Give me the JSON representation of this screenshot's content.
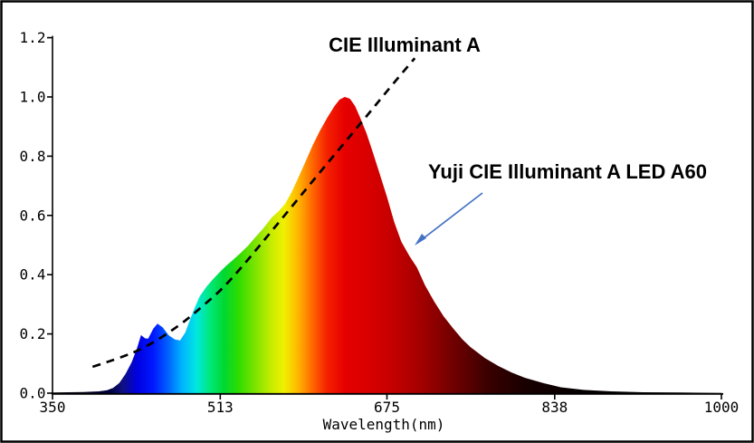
{
  "annotations": {
    "cie_label": "CIE Illuminant A",
    "led_label": "Yuji CIE Illuminant A LED A60",
    "arrow_color": "#4472c4",
    "text_color": "#000000"
  },
  "axes": {
    "x": {
      "title": "Wavelength(nm)",
      "min": 350,
      "max": 1000,
      "tick_labels": [
        "350",
        "513",
        "675",
        "838",
        "1000"
      ],
      "tick_values": [
        350,
        513,
        675,
        838,
        1000
      ]
    },
    "y": {
      "min": 0.0,
      "max": 1.2,
      "tick_labels": [
        "0.0",
        "0.2",
        "0.4",
        "0.6",
        "0.8",
        "1.0",
        "1.2"
      ],
      "tick_values": [
        0.0,
        0.2,
        0.4,
        0.6,
        0.8,
        1.0,
        1.2
      ]
    }
  },
  "chart_data": {
    "type": "area",
    "title": "",
    "xlabel": "Wavelength(nm)",
    "ylabel": "",
    "xlim": [
      350,
      1000
    ],
    "ylim": [
      0,
      1.2
    ],
    "grid": false,
    "legend": "inline-annotations",
    "series": [
      {
        "name": "CIE Illuminant A",
        "style": "dashed-line",
        "color": "#000000",
        "points": [
          [
            389,
            0.089
          ],
          [
            413,
            0.116
          ],
          [
            440,
            0.153
          ],
          [
            475,
            0.232
          ],
          [
            497,
            0.297
          ],
          [
            519,
            0.364
          ],
          [
            563,
            0.547
          ],
          [
            607,
            0.734
          ],
          [
            651,
            0.917
          ],
          [
            677,
            1.028
          ],
          [
            702,
            1.131
          ]
        ]
      },
      {
        "name": "Yuji CIE Illuminant A LED A60",
        "style": "filled-area-spectrum",
        "points": [
          [
            350,
            0.002
          ],
          [
            380,
            0.004
          ],
          [
            395,
            0.006
          ],
          [
            403,
            0.01
          ],
          [
            409,
            0.018
          ],
          [
            415,
            0.035
          ],
          [
            421,
            0.065
          ],
          [
            427,
            0.105
          ],
          [
            432,
            0.15
          ],
          [
            436,
            0.196
          ],
          [
            440,
            0.185
          ],
          [
            443,
            0.184
          ],
          [
            448,
            0.218
          ],
          [
            452,
            0.235
          ],
          [
            457,
            0.222
          ],
          [
            463,
            0.195
          ],
          [
            469,
            0.181
          ],
          [
            474,
            0.178
          ],
          [
            479,
            0.205
          ],
          [
            484,
            0.251
          ],
          [
            488,
            0.287
          ],
          [
            493,
            0.327
          ],
          [
            500,
            0.361
          ],
          [
            506,
            0.385
          ],
          [
            512,
            0.407
          ],
          [
            519,
            0.431
          ],
          [
            526,
            0.452
          ],
          [
            533,
            0.474
          ],
          [
            540,
            0.498
          ],
          [
            547,
            0.526
          ],
          [
            554,
            0.553
          ],
          [
            563,
            0.593
          ],
          [
            570,
            0.615
          ],
          [
            576,
            0.639
          ],
          [
            582,
            0.676
          ],
          [
            589,
            0.728
          ],
          [
            596,
            0.783
          ],
          [
            603,
            0.838
          ],
          [
            610,
            0.887
          ],
          [
            617,
            0.93
          ],
          [
            624,
            0.969
          ],
          [
            629,
            0.991
          ],
          [
            634,
            1.0
          ],
          [
            639,
            0.994
          ],
          [
            644,
            0.969
          ],
          [
            649,
            0.93
          ],
          [
            655,
            0.878
          ],
          [
            661,
            0.816
          ],
          [
            668,
            0.74
          ],
          [
            675,
            0.663
          ],
          [
            682,
            0.578
          ],
          [
            689,
            0.511
          ],
          [
            697,
            0.462
          ],
          [
            704,
            0.425
          ],
          [
            712,
            0.364
          ],
          [
            721,
            0.309
          ],
          [
            730,
            0.26
          ],
          [
            739,
            0.22
          ],
          [
            748,
            0.183
          ],
          [
            756,
            0.156
          ],
          [
            770,
            0.119
          ],
          [
            783,
            0.092
          ],
          [
            796,
            0.07
          ],
          [
            809,
            0.052
          ],
          [
            827,
            0.034
          ],
          [
            844,
            0.02
          ],
          [
            866,
            0.011
          ],
          [
            893,
            0.006
          ],
          [
            924,
            0.003
          ],
          [
            960,
            0.002
          ],
          [
            1000,
            0.001
          ]
        ]
      }
    ],
    "spectrum_gradient": [
      [
        350,
        "#000000"
      ],
      [
        405,
        "#00003a"
      ],
      [
        418,
        "#101080"
      ],
      [
        432,
        "#0000e0"
      ],
      [
        448,
        "#0018ff"
      ],
      [
        462,
        "#0060ff"
      ],
      [
        476,
        "#00b4ff"
      ],
      [
        490,
        "#00e8e0"
      ],
      [
        503,
        "#00e87a"
      ],
      [
        517,
        "#00d830"
      ],
      [
        531,
        "#30dc00"
      ],
      [
        547,
        "#7ce400"
      ],
      [
        563,
        "#c8ec00"
      ],
      [
        575,
        "#f0f000"
      ],
      [
        589,
        "#ffb400"
      ],
      [
        604,
        "#ff6000"
      ],
      [
        617,
        "#f42000"
      ],
      [
        634,
        "#e60000"
      ],
      [
        660,
        "#d60000"
      ],
      [
        685,
        "#c00000"
      ],
      [
        710,
        "#a00000"
      ],
      [
        740,
        "#700000"
      ],
      [
        775,
        "#380000"
      ],
      [
        810,
        "#180000"
      ],
      [
        860,
        "#050000"
      ],
      [
        1000,
        "#000000"
      ]
    ]
  }
}
